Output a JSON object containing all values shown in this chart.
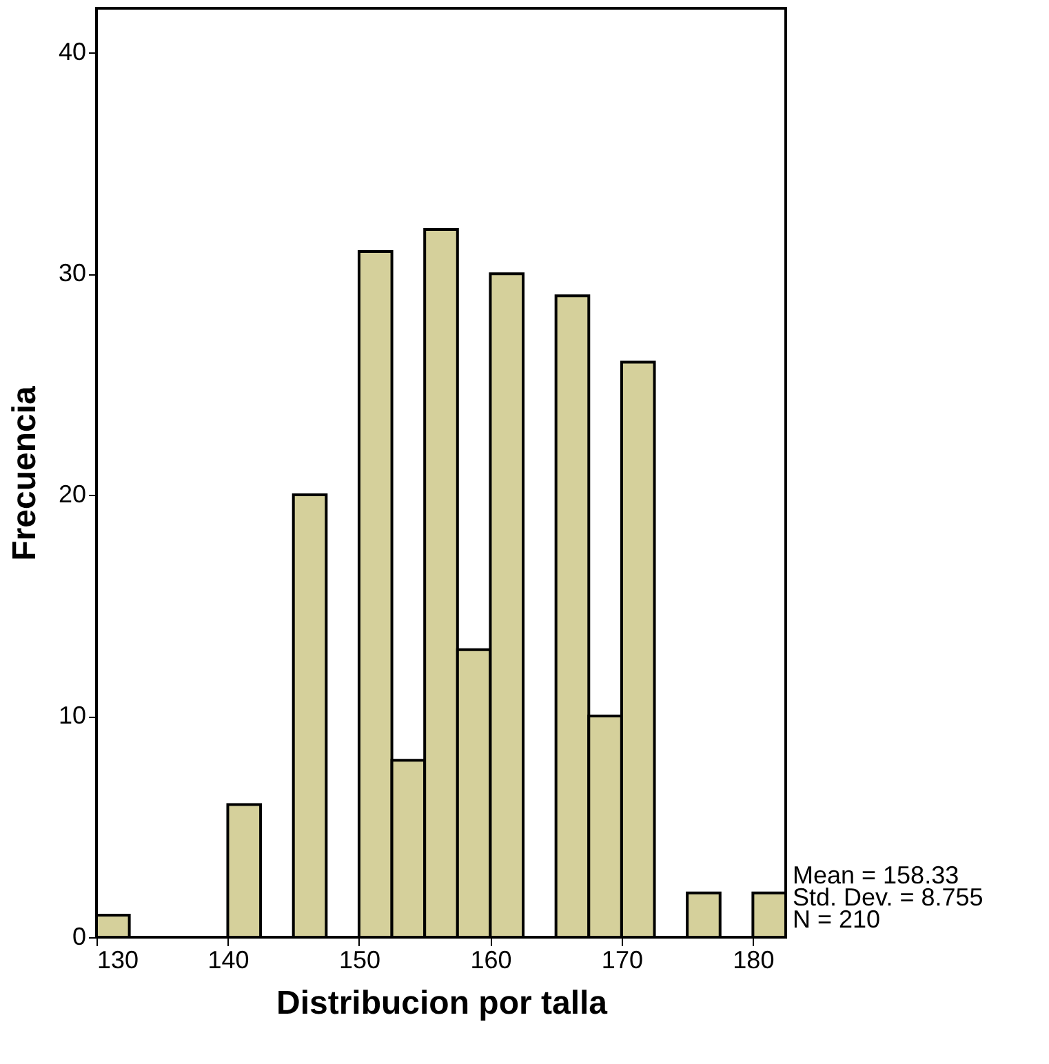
{
  "chart_data": {
    "type": "histogram",
    "xlabel": "Distribucion por talla",
    "ylabel": "Frecuencia",
    "bins": [
      130,
      132.5,
      135,
      137.5,
      140,
      142.5,
      145,
      147.5,
      150,
      152.5,
      155,
      157.5,
      160,
      162.5,
      165,
      167.5,
      170,
      172.5,
      175,
      177.5,
      180,
      182.5
    ],
    "values": [
      1,
      0,
      0,
      0,
      6,
      0,
      20,
      0,
      31,
      8,
      32,
      13,
      30,
      0,
      29,
      10,
      26,
      0,
      2,
      0,
      2
    ],
    "color": "#d5d09b",
    "xlim": [
      130,
      182.5
    ],
    "xticks": [
      130,
      140,
      150,
      160,
      170,
      180
    ],
    "ylim": [
      0,
      42
    ],
    "yticks": [
      0,
      10,
      20,
      30,
      40
    ],
    "grid": false,
    "annotations": [
      "Mean = 158.33",
      "Std. Dev. = 8.755",
      "N = 210"
    ]
  }
}
